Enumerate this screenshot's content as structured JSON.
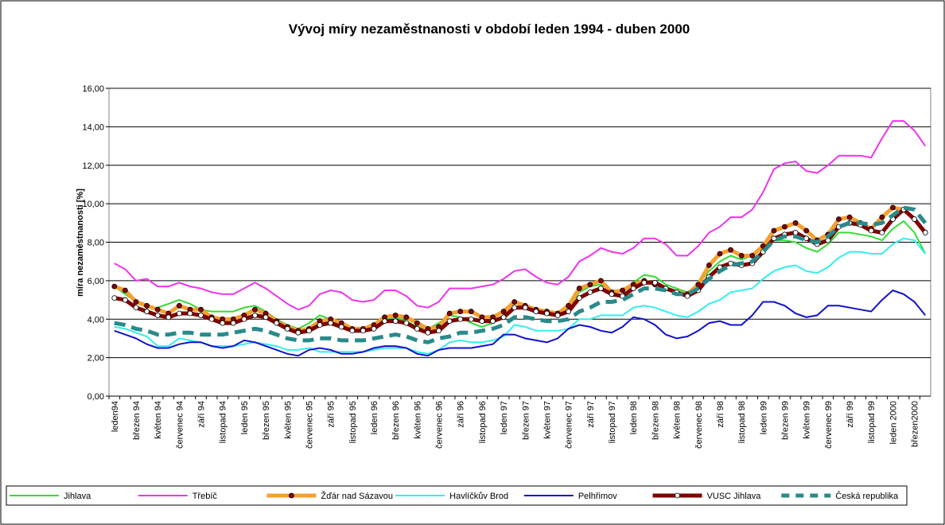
{
  "chart_data": {
    "type": "line",
    "title": "Vývoj míry nezaměstnanosti v období leden 1994 - duben 2000",
    "y_label": "míra nezaměstnanosti [%]",
    "categories": [
      "leden94",
      null,
      "březen 94",
      null,
      "květen 94",
      null,
      "červenec 94",
      null,
      "září 94",
      null,
      "listopad 94",
      null,
      "leden 95",
      null,
      "březen 95",
      null,
      "květen 95",
      null,
      "červenec 95",
      null,
      "září 95",
      null,
      "listopad 95",
      null,
      "leden 96",
      null,
      "březen 96",
      null,
      "květen 96",
      null,
      "červenec 96",
      null,
      "září 96",
      null,
      "listopad 96",
      null,
      "leden 97",
      null,
      "březen 97",
      null,
      "květen 97",
      null,
      "červenec 97",
      null,
      "září 97",
      null,
      "listopad 97",
      null,
      "leden 98",
      null,
      "březen 98",
      null,
      "květen 98",
      null,
      "červenec 98",
      null,
      "září 98",
      null,
      "listopad 98",
      null,
      "leden 99",
      null,
      "březen 99",
      null,
      "květen 99",
      null,
      "červenec 99",
      null,
      "září 99",
      null,
      "listopad 99",
      null,
      "leden 2000",
      null,
      "březen2000",
      null
    ],
    "ylim": [
      0,
      16
    ],
    "yticks": [
      {
        "value": 0,
        "label": "0,00"
      },
      {
        "value": 2,
        "label": "2,00"
      },
      {
        "value": 4,
        "label": "4,00"
      },
      {
        "value": 6,
        "label": "6,00"
      },
      {
        "value": 8,
        "label": "8,00"
      },
      {
        "value": 10,
        "label": "10,00"
      },
      {
        "value": 12,
        "label": "12,00"
      },
      {
        "value": 14,
        "label": "14,00"
      },
      {
        "value": 16,
        "label": "16,00"
      }
    ],
    "grid": true,
    "legend": "bottom",
    "series": [
      {
        "name": "Jihlava",
        "color": "#33dd33",
        "values": [
          5.7,
          5.3,
          4.9,
          4.6,
          4.6,
          4.8,
          5.0,
          4.8,
          4.5,
          4.4,
          4.4,
          4.4,
          4.6,
          4.7,
          4.4,
          4.0,
          3.7,
          3.5,
          3.8,
          4.2,
          4.0,
          3.7,
          3.5,
          3.5,
          3.7,
          4.0,
          4.1,
          3.9,
          3.6,
          3.5,
          3.8,
          4.2,
          4.1,
          3.8,
          3.6,
          3.8,
          4.2,
          4.6,
          4.6,
          4.4,
          4.2,
          4.2,
          4.6,
          5.4,
          5.7,
          5.8,
          5.5,
          5.5,
          5.9,
          6.3,
          6.2,
          5.8,
          5.6,
          5.4,
          5.8,
          6.5,
          7.0,
          7.3,
          7.1,
          7.3,
          7.9,
          8.1,
          8.1,
          8.0,
          7.7,
          7.5,
          7.9,
          8.5,
          8.5,
          8.4,
          8.3,
          8.1,
          8.7,
          9.1,
          8.5,
          7.4
        ]
      },
      {
        "name": "Třebíč",
        "color": "#ee33ee",
        "values": [
          6.9,
          6.6,
          6.0,
          6.1,
          5.7,
          5.7,
          5.9,
          5.7,
          5.6,
          5.4,
          5.3,
          5.3,
          5.6,
          5.9,
          5.6,
          5.2,
          4.8,
          4.5,
          4.7,
          5.3,
          5.5,
          5.4,
          5.0,
          4.9,
          5.0,
          5.5,
          5.5,
          5.2,
          4.7,
          4.6,
          4.9,
          5.6,
          5.6,
          5.6,
          5.7,
          5.8,
          6.1,
          6.5,
          6.6,
          6.2,
          5.9,
          5.8,
          6.2,
          7.0,
          7.3,
          7.7,
          7.5,
          7.4,
          7.7,
          8.2,
          8.2,
          7.9,
          7.3,
          7.3,
          7.8,
          8.5,
          8.8,
          9.3,
          9.3,
          9.7,
          10.6,
          11.8,
          12.1,
          12.2,
          11.7,
          11.6,
          12.0,
          12.5,
          12.5,
          12.5,
          12.4,
          13.4,
          14.3,
          14.3,
          13.8,
          13.0
        ]
      },
      {
        "name": "Žďár nad Sázavou",
        "color": "#f5a030",
        "marker": "circle",
        "marker_color": "#880000",
        "values": [
          5.7,
          5.5,
          4.9,
          4.7,
          4.5,
          4.3,
          4.7,
          4.5,
          4.5,
          4.1,
          4.0,
          4.0,
          4.2,
          4.5,
          4.3,
          3.9,
          3.6,
          3.4,
          3.5,
          3.9,
          4.0,
          3.8,
          3.5,
          3.5,
          3.7,
          4.1,
          4.2,
          4.1,
          3.8,
          3.5,
          3.6,
          4.3,
          4.4,
          4.4,
          4.1,
          4.1,
          4.4,
          4.9,
          4.7,
          4.5,
          4.4,
          4.3,
          4.7,
          5.6,
          5.8,
          6.0,
          5.4,
          5.5,
          5.8,
          6.0,
          5.8,
          5.6,
          5.4,
          5.3,
          5.8,
          6.8,
          7.4,
          7.6,
          7.3,
          7.3,
          7.8,
          8.6,
          8.8,
          9.0,
          8.6,
          8.1,
          8.4,
          9.2,
          9.3,
          9.0,
          8.7,
          9.3,
          9.8,
          9.7,
          9.2,
          8.5
        ]
      },
      {
        "name": "Havlíčkův Brod",
        "color": "#33eeee",
        "values": [
          3.6,
          3.5,
          3.3,
          3.1,
          2.6,
          2.6,
          3.0,
          2.9,
          2.8,
          2.6,
          2.6,
          2.6,
          2.7,
          2.8,
          2.7,
          2.6,
          2.4,
          2.4,
          2.5,
          2.3,
          2.3,
          2.3,
          2.3,
          2.3,
          2.4,
          2.5,
          2.5,
          2.5,
          2.3,
          2.2,
          2.4,
          2.8,
          2.9,
          2.8,
          2.8,
          2.9,
          3.1,
          3.7,
          3.6,
          3.4,
          3.4,
          3.4,
          3.5,
          4.0,
          4.0,
          4.2,
          4.2,
          4.2,
          4.6,
          4.7,
          4.6,
          4.4,
          4.2,
          4.1,
          4.4,
          4.8,
          5.0,
          5.4,
          5.5,
          5.6,
          6.1,
          6.5,
          6.7,
          6.8,
          6.5,
          6.4,
          6.7,
          7.2,
          7.5,
          7.5,
          7.4,
          7.4,
          7.9,
          8.2,
          8.1,
          7.4
        ]
      },
      {
        "name": "Pelhřimov",
        "color": "#1111cc",
        "values": [
          3.4,
          3.2,
          3.0,
          2.7,
          2.5,
          2.5,
          2.7,
          2.8,
          2.8,
          2.6,
          2.5,
          2.6,
          2.9,
          2.8,
          2.6,
          2.4,
          2.2,
          2.1,
          2.4,
          2.5,
          2.4,
          2.2,
          2.2,
          2.3,
          2.5,
          2.6,
          2.6,
          2.5,
          2.2,
          2.1,
          2.4,
          2.5,
          2.5,
          2.5,
          2.6,
          2.7,
          3.2,
          3.2,
          3.0,
          2.9,
          2.8,
          3.0,
          3.5,
          3.7,
          3.6,
          3.4,
          3.3,
          3.6,
          4.1,
          4.0,
          3.7,
          3.2,
          3.0,
          3.1,
          3.4,
          3.8,
          3.9,
          3.7,
          3.7,
          4.2,
          4.9,
          4.9,
          4.7,
          4.3,
          4.1,
          4.2,
          4.7,
          4.7,
          4.6,
          4.5,
          4.4,
          5.0,
          5.5,
          5.3,
          4.9,
          4.2
        ]
      },
      {
        "name": "VUSC Jihlava",
        "color": "#800000",
        "marker": "circle",
        "marker_color": "#ffffff",
        "values": [
          5.1,
          5.0,
          4.6,
          4.4,
          4.2,
          4.1,
          4.3,
          4.3,
          4.2,
          4.0,
          3.8,
          3.8,
          4.0,
          4.2,
          4.1,
          3.8,
          3.5,
          3.3,
          3.4,
          3.7,
          3.8,
          3.6,
          3.4,
          3.4,
          3.5,
          3.9,
          3.9,
          3.8,
          3.5,
          3.3,
          3.4,
          3.9,
          4.0,
          4.0,
          3.9,
          3.9,
          4.1,
          4.6,
          4.6,
          4.4,
          4.3,
          4.2,
          4.4,
          5.1,
          5.4,
          5.6,
          5.3,
          5.2,
          5.6,
          5.9,
          5.9,
          5.6,
          5.4,
          5.2,
          5.5,
          6.2,
          6.7,
          6.9,
          6.8,
          6.9,
          7.5,
          8.2,
          8.4,
          8.5,
          8.2,
          7.9,
          8.1,
          8.8,
          9.0,
          8.9,
          8.6,
          8.5,
          9.2,
          9.7,
          9.2,
          8.5
        ]
      },
      {
        "name": "Česká republika",
        "color": "#2a8a8a",
        "dash": true,
        "values": [
          3.8,
          3.7,
          3.5,
          3.4,
          3.2,
          3.2,
          3.3,
          3.3,
          3.2,
          3.2,
          3.2,
          3.3,
          3.4,
          3.5,
          3.4,
          3.2,
          3.0,
          2.9,
          2.9,
          3.0,
          3.0,
          2.9,
          2.9,
          2.9,
          3.0,
          3.1,
          3.2,
          3.1,
          2.9,
          2.8,
          3.0,
          3.1,
          3.3,
          3.3,
          3.4,
          3.5,
          3.7,
          4.1,
          4.1,
          4.0,
          3.9,
          3.9,
          4.0,
          4.4,
          4.6,
          4.9,
          4.9,
          5.0,
          5.3,
          5.6,
          5.6,
          5.5,
          5.3,
          5.3,
          5.6,
          6.1,
          6.5,
          6.8,
          6.9,
          7.0,
          7.5,
          8.1,
          8.3,
          8.3,
          8.1,
          8.0,
          8.3,
          8.8,
          9.0,
          9.0,
          8.9,
          9.0,
          9.4,
          9.8,
          9.7,
          9.0
        ]
      }
    ]
  }
}
